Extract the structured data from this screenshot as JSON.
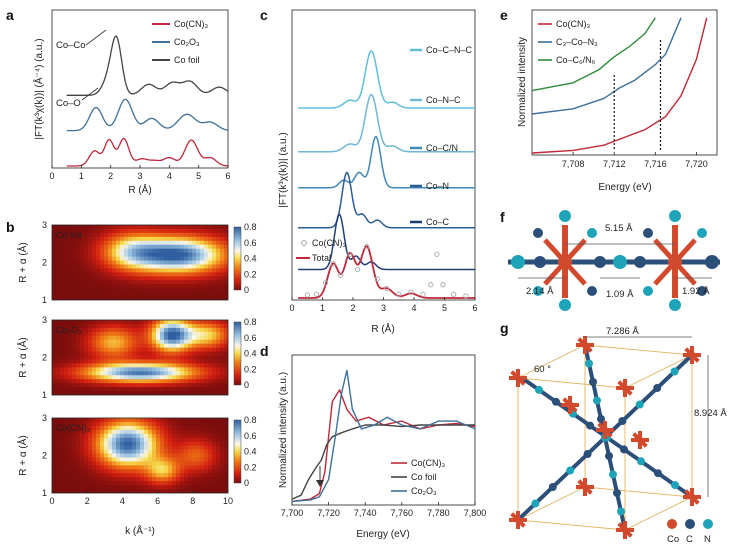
{
  "panel_labels": {
    "a": "a",
    "b": "b",
    "c": "c",
    "d": "d",
    "e": "e",
    "f": "f",
    "g": "g"
  },
  "colors": {
    "cocn3": "#c0283a",
    "co2o3": "#3d6f9a",
    "cofoil": "#444444",
    "total": "#c0283a",
    "cocnc": "#5fbfdb",
    "conc": "#6fb6d6",
    "cocn": "#3f88b8",
    "con": "#2a5d94",
    "coc": "#1e3f78",
    "grey": "#aaaaaa",
    "green": "#2e8b3a",
    "co_atom": "#d24a2e",
    "c_atom": "#2c4f7a",
    "n_atom": "#1fa3b8",
    "cell": "#e0b460"
  },
  "chart_data": [
    {
      "id": "a",
      "type": "line",
      "xlabel": "R (Å)",
      "ylabel": "|FT(k³χ(k))| (Å⁻⁴) (a.u.)",
      "xlim": [
        0,
        6
      ],
      "xticks": [
        "0",
        "1",
        "2",
        "3",
        "4",
        "5",
        "6"
      ],
      "legend": [
        "Co(CN)₃",
        "Co₂O₃",
        "Co foil"
      ],
      "annotations": [
        "Co–Co",
        "Co–O"
      ],
      "series": [
        {
          "name": "Co(CN)₃",
          "offset": 0,
          "peaks": [
            [
              1.45,
              0.55,
              0.18
            ],
            [
              1.95,
              0.95,
              0.16
            ],
            [
              2.45,
              1.0,
              0.17
            ],
            [
              3.05,
              0.25,
              0.2
            ],
            [
              3.5,
              0.18,
              0.2
            ],
            [
              4.0,
              0.3,
              0.2
            ],
            [
              4.75,
              0.95,
              0.22
            ],
            [
              5.4,
              0.3,
              0.2
            ]
          ]
        },
        {
          "name": "Co₂O₃",
          "offset": 1.3,
          "peaks": [
            [
              1.5,
              0.85,
              0.22
            ],
            [
              2.5,
              1.15,
              0.24
            ],
            [
              3.4,
              0.45,
              0.25
            ],
            [
              4.6,
              0.6,
              0.3
            ],
            [
              5.4,
              0.3,
              0.25
            ]
          ]
        },
        {
          "name": "Co foil",
          "offset": 2.6,
          "peaks": [
            [
              1.9,
              0.5,
              0.2
            ],
            [
              2.2,
              2.0,
              0.18
            ],
            [
              3.3,
              0.4,
              0.25
            ],
            [
              4.1,
              0.45,
              0.25
            ],
            [
              4.7,
              0.5,
              0.25
            ],
            [
              5.7,
              0.3,
              0.25
            ]
          ]
        }
      ]
    },
    {
      "id": "b",
      "type": "heatmap",
      "xlabel": "k (Å⁻¹)",
      "ylabel": "R + α (Å)",
      "xlim": [
        0,
        10
      ],
      "ylim": [
        1,
        3
      ],
      "xticks": [
        "0",
        "2",
        "4",
        "6",
        "8",
        "10"
      ],
      "yticks": [
        "1",
        "2",
        "3"
      ],
      "colorbar_ticks": [
        "0.8",
        "0.6",
        "0.4",
        "0.2",
        "0"
      ],
      "maps": [
        {
          "name": "Co foil",
          "blobs": [
            [
              7.2,
              2.2,
              1.8,
              0.33,
              1.0
            ],
            [
              4.5,
              2.3,
              1.2,
              0.35,
              0.5
            ]
          ]
        },
        {
          "name": "Co₂O₃",
          "blobs": [
            [
              6.8,
              2.6,
              0.8,
              0.3,
              1.0
            ],
            [
              5.0,
              1.6,
              2.2,
              0.18,
              0.95
            ],
            [
              8.8,
              2.6,
              0.9,
              0.25,
              0.5
            ],
            [
              3.5,
              2.4,
              1.0,
              0.3,
              0.45
            ]
          ]
        },
        {
          "name": "Co(CN)₃",
          "blobs": [
            [
              4.3,
              2.3,
              1.2,
              0.42,
              1.0
            ],
            [
              6.3,
              1.6,
              0.7,
              0.25,
              0.45
            ],
            [
              8.2,
              2.0,
              0.8,
              0.3,
              0.3
            ]
          ]
        }
      ]
    },
    {
      "id": "c",
      "type": "line",
      "xlabel": "R (Å)",
      "ylabel": "|FT(k³χ(k))| (a.u.)",
      "xlim": [
        0,
        6
      ],
      "xticks": [
        "0",
        "1",
        "2",
        "3",
        "4",
        "5",
        "6"
      ],
      "labels": [
        "Co–C–N–C",
        "Co–N–C",
        "Co–C/N",
        "Co–N",
        "Co–C"
      ],
      "legend": [
        "Co(CN)₃",
        "Total"
      ],
      "series": [
        {
          "name": "Co–C–N–C",
          "offset": 5.0,
          "peaks": [
            [
              2.6,
              1.5,
              0.2
            ],
            [
              3.3,
              0.15,
              0.18
            ],
            [
              1.9,
              0.2,
              0.2
            ]
          ]
        },
        {
          "name": "Co–N–C",
          "offset": 3.85,
          "peaks": [
            [
              2.6,
              1.5,
              0.2
            ],
            [
              3.3,
              0.15,
              0.18
            ],
            [
              1.9,
              0.2,
              0.2
            ]
          ]
        },
        {
          "name": "Co–C/N",
          "offset": 2.9,
          "peaks": [
            [
              2.75,
              1.35,
              0.16
            ],
            [
              2.2,
              0.4,
              0.15
            ],
            [
              1.7,
              0.2,
              0.15
            ]
          ]
        },
        {
          "name": "Co–N",
          "offset": 1.85,
          "peaks": [
            [
              1.8,
              1.45,
              0.16
            ],
            [
              2.3,
              0.35,
              0.15
            ],
            [
              2.8,
              0.2,
              0.15
            ]
          ]
        },
        {
          "name": "Co–C",
          "offset": 0.75,
          "peaks": [
            [
              1.55,
              1.45,
              0.16
            ],
            [
              2.1,
              0.35,
              0.15
            ],
            [
              2.6,
              0.2,
              0.15
            ]
          ]
        },
        {
          "name": "Total",
          "offset": 0,
          "peaks": [
            [
              1.35,
              0.9,
              0.18
            ],
            [
              1.9,
              1.15,
              0.18
            ],
            [
              2.45,
              1.35,
              0.2
            ],
            [
              3.1,
              0.25,
              0.2
            ],
            [
              3.9,
              0.12,
              0.2
            ]
          ]
        },
        {
          "name": "Co(CN)₃",
          "offset": 0,
          "points": [
            [
              0.5,
              0.08
            ],
            [
              0.8,
              0.1
            ],
            [
              1.1,
              0.4
            ],
            [
              1.35,
              0.9
            ],
            [
              1.6,
              0.6
            ],
            [
              1.9,
              1.15
            ],
            [
              2.15,
              0.75
            ],
            [
              2.45,
              1.35
            ],
            [
              2.8,
              0.5
            ],
            [
              3.1,
              0.25
            ],
            [
              3.5,
              0.1
            ],
            [
              3.9,
              0.15
            ],
            [
              4.3,
              0.1
            ],
            [
              4.55,
              0.35
            ],
            [
              4.75,
              1.15
            ],
            [
              4.95,
              0.35
            ],
            [
              5.3,
              0.1
            ],
            [
              5.7,
              0.05
            ]
          ]
        }
      ]
    },
    {
      "id": "d",
      "type": "line",
      "xlabel": "Energy (eV)",
      "ylabel": "Normalized intensity (a.u.)",
      "xlim": [
        7700,
        7800
      ],
      "xticks": [
        "7,700",
        "7,720",
        "7,740",
        "7,760",
        "7,780",
        "7,800"
      ],
      "legend": [
        "Co(CN)₃",
        "Co foil",
        "Co₂O₃"
      ],
      "series": [
        {
          "name": "Co(CN)₃",
          "points": [
            [
              7700,
              0.02
            ],
            [
              7710,
              0.05
            ],
            [
              7715,
              0.12
            ],
            [
              7718,
              0.4
            ],
            [
              7722,
              1.3
            ],
            [
              7726,
              1.45
            ],
            [
              7730,
              1.2
            ],
            [
              7735,
              1.05
            ],
            [
              7742,
              1.1
            ],
            [
              7750,
              1.0
            ],
            [
              7760,
              1.05
            ],
            [
              7770,
              0.95
            ],
            [
              7780,
              1.0
            ],
            [
              7790,
              1.02
            ],
            [
              7800,
              0.98
            ]
          ]
        },
        {
          "name": "Co foil",
          "points": [
            [
              7700,
              0.05
            ],
            [
              7705,
              0.1
            ],
            [
              7709,
              0.3
            ],
            [
              7713,
              0.45
            ],
            [
              7716,
              0.55
            ],
            [
              7719,
              0.75
            ],
            [
              7722,
              0.85
            ],
            [
              7727,
              0.9
            ],
            [
              7733,
              0.95
            ],
            [
              7740,
              1.0
            ],
            [
              7750,
              1.0
            ],
            [
              7760,
              0.98
            ],
            [
              7770,
              1.0
            ],
            [
              7780,
              1.0
            ],
            [
              7790,
              1.0
            ],
            [
              7800,
              1.0
            ]
          ]
        },
        {
          "name": "Co₂O₃",
          "points": [
            [
              7700,
              0.02
            ],
            [
              7710,
              0.04
            ],
            [
              7715,
              0.08
            ],
            [
              7720,
              0.3
            ],
            [
              7724,
              0.9
            ],
            [
              7727,
              1.4
            ],
            [
              7730,
              1.7
            ],
            [
              7733,
              1.2
            ],
            [
              7738,
              0.95
            ],
            [
              7745,
              1.0
            ],
            [
              7752,
              1.1
            ],
            [
              7760,
              1.0
            ],
            [
              7770,
              0.95
            ],
            [
              7780,
              1.05
            ],
            [
              7790,
              1.05
            ],
            [
              7800,
              0.95
            ]
          ]
        }
      ]
    },
    {
      "id": "e",
      "type": "line",
      "xlabel": "Energy (eV)",
      "ylabel": "Normalized intensity",
      "xlim": [
        7704,
        7722
      ],
      "xticks": [
        "7,708",
        "7,712",
        "7,716",
        "7,720"
      ],
      "legend": [
        "Co(CN)₃",
        "C₃–Co–N₃",
        "Co–C₆/N₆"
      ],
      "markers": [
        7712,
        7716.5
      ],
      "series": [
        {
          "name": "Co(CN)₃",
          "points": [
            [
              7704,
              0.0
            ],
            [
              7708,
              0.05
            ],
            [
              7711,
              0.15
            ],
            [
              7713,
              0.3
            ],
            [
              7715,
              0.45
            ],
            [
              7717,
              0.7
            ],
            [
              7718.5,
              1.1
            ],
            [
              7720,
              1.8
            ],
            [
              7721,
              2.6
            ]
          ]
        },
        {
          "name": "C₃–Co–N₃",
          "points": [
            [
              7704,
              0.75
            ],
            [
              7708,
              0.85
            ],
            [
              7711,
              1.05
            ],
            [
              7712.5,
              1.25
            ],
            [
              7714,
              1.4
            ],
            [
              7716,
              1.7
            ],
            [
              7717,
              1.9
            ],
            [
              7718.5,
              2.6
            ]
          ]
        },
        {
          "name": "Co–C₆/N₆",
          "points": [
            [
              7704,
              1.2
            ],
            [
              7708,
              1.35
            ],
            [
              7710.5,
              1.6
            ],
            [
              7712,
              1.85
            ],
            [
              7713.5,
              2.05
            ],
            [
              7715,
              2.3
            ],
            [
              7716,
              2.6
            ]
          ]
        }
      ]
    }
  ],
  "panel_f": {
    "distances": [
      "5.15 Å",
      "2.14 Å",
      "1.09 Å",
      "1.92 Å"
    ]
  },
  "panel_g": {
    "lattice_a": "7.286 Å",
    "lattice_c": "8.924 Å",
    "angle": "60 °",
    "legend": [
      "Co",
      "C",
      "N"
    ]
  }
}
